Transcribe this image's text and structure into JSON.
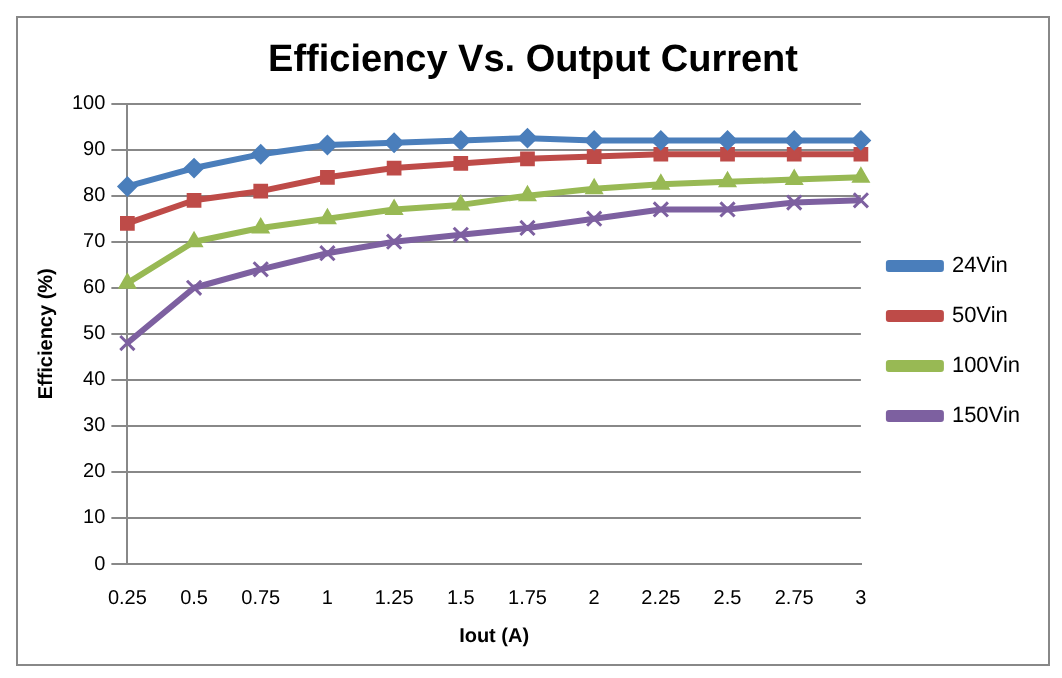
{
  "chart_data": {
    "type": "line",
    "title": "Efficiency Vs. Output Current",
    "xlabel": "Iout (A)",
    "ylabel": "Efficiency (%)",
    "categories": [
      "0.25",
      "0.5",
      "0.75",
      "1",
      "1.25",
      "1.5",
      "1.75",
      "2",
      "2.25",
      "2.5",
      "2.75",
      "3"
    ],
    "ylim": [
      0,
      100
    ],
    "yticks": [
      0,
      10,
      20,
      30,
      40,
      50,
      60,
      70,
      80,
      90,
      100
    ],
    "grid": "y",
    "legend": "right",
    "series": [
      {
        "name": "24Vin",
        "color": "#4a7ebb",
        "marker": "diamond",
        "values": [
          82,
          86,
          89,
          91,
          91.5,
          92,
          92.5,
          92,
          92,
          92,
          92,
          92
        ]
      },
      {
        "name": "50Vin",
        "color": "#be4b48",
        "marker": "square",
        "values": [
          74,
          79,
          81,
          84,
          86,
          87,
          88,
          88.5,
          89,
          89,
          89,
          89
        ]
      },
      {
        "name": "100Vin",
        "color": "#98b954",
        "marker": "triangle",
        "values": [
          61,
          70,
          73,
          75,
          77,
          78,
          80,
          81.5,
          82.5,
          83,
          83.5,
          84
        ]
      },
      {
        "name": "150Vin",
        "color": "#7d60a0",
        "marker": "cross",
        "values": [
          48,
          60,
          64,
          67.5,
          70,
          71.5,
          73,
          75,
          77,
          77,
          78.5,
          79
        ]
      }
    ]
  }
}
